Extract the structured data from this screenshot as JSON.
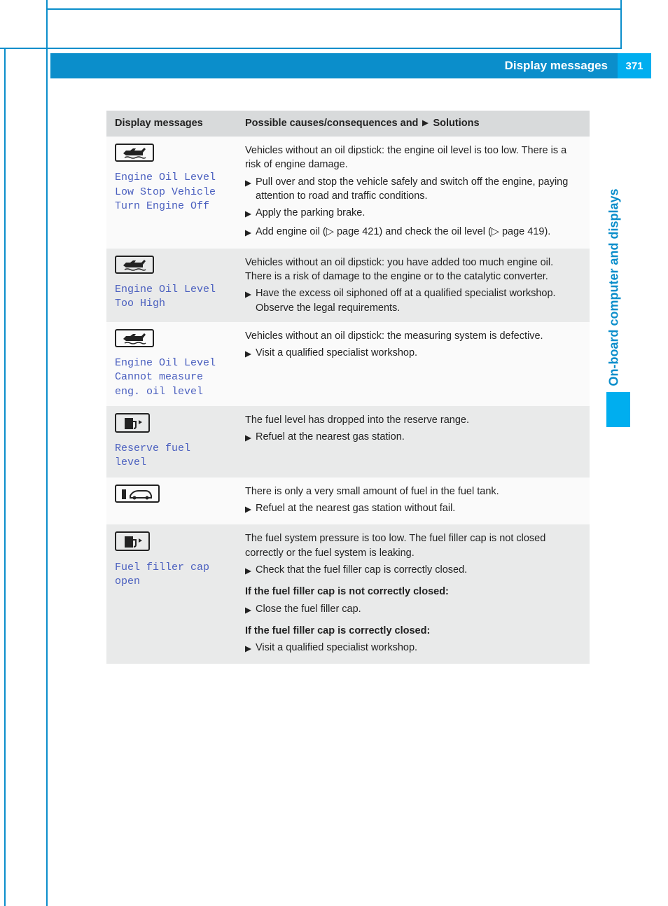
{
  "header": {
    "title": "Display messages",
    "page_number": "371"
  },
  "side_tab": "On-board computer and displays",
  "table": {
    "head_col1": "Display messages",
    "head_col2_prefix": "Possible causes/consequences and",
    "head_col2_suffix": "Solutions",
    "rows": [
      {
        "icon": "oil",
        "display_label": "Engine Oil Level Low Stop Vehicle Turn Engine Off",
        "intro_lines": [
          "Vehicles without an oil dipstick: the engine oil level is too low. There is a risk of engine damage."
        ],
        "bullets": [
          "Pull over and stop the vehicle safely and switch off the engine, paying attention to road and traffic conditions.",
          "Apply the parking brake.",
          "Add engine oil (▷ page 421) and check the oil level (▷ page 419)."
        ]
      },
      {
        "icon": "oil",
        "display_label": "Engine Oil Level Too High",
        "intro_lines": [
          "Vehicles without an oil dipstick: you have added too much engine oil. There is a risk of damage to the engine or to the catalytic converter."
        ],
        "bullets": [
          "Have the excess oil siphoned off at a qualified specialist workshop. Observe the legal requirements."
        ]
      },
      {
        "icon": "oil",
        "display_label": "Engine Oil Level Cannot measure eng. oil level",
        "intro_lines": [
          "Vehicles without an oil dipstick: the measuring system is defective."
        ],
        "bullets": [
          "Visit a qualified specialist workshop."
        ]
      },
      {
        "icon": "fuel",
        "display_label": "Reserve fuel level",
        "intro_lines": [
          "The fuel level has dropped into the reserve range."
        ],
        "bullets": [
          "Refuel at the nearest gas station."
        ]
      },
      {
        "icon": "fuel-car",
        "display_label": "",
        "intro_lines": [
          "There is only a very small amount of fuel in the fuel tank."
        ],
        "bullets": [
          "Refuel at the nearest gas station without fail."
        ]
      },
      {
        "icon": "fuel",
        "display_label": "Fuel filler cap open",
        "intro_lines": [
          "The fuel system pressure is too low. The fuel filler cap is not closed correctly or the fuel system is leaking."
        ],
        "bullets": [
          "Check that the fuel filler cap is correctly closed."
        ],
        "extra_sections": [
          {
            "bold": "If the fuel filler cap is not correctly closed:",
            "bullets": [
              "Close the fuel filler cap."
            ]
          },
          {
            "bold": "If the fuel filler cap is correctly closed:",
            "bullets": [
              "Visit a qualified specialist workshop."
            ]
          }
        ]
      }
    ]
  },
  "colors": {
    "blue_dark": "#0b8ecb",
    "blue_bright": "#00aeef",
    "display_text": "#4a5fbf",
    "row_odd": "#fafafa",
    "row_even": "#e9eaea",
    "head_bg": "#d8dadb"
  }
}
